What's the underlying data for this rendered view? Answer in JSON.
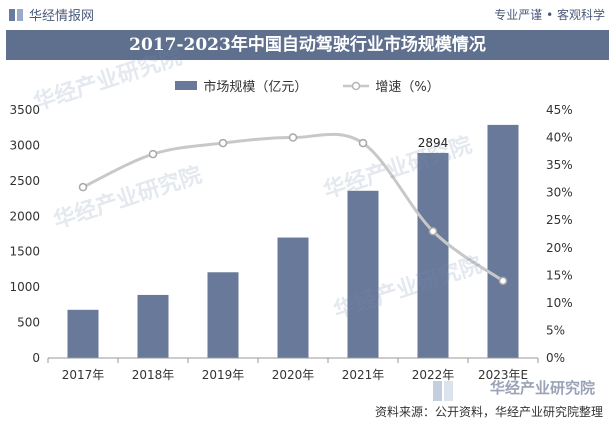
{
  "header": {
    "brand": "华经情报网",
    "tagline": "专业严谨 • 客观科学",
    "title": "2017-2023年中国自动驾驶行业市场规模情况"
  },
  "footer": {
    "source": "资料来源：公开资料，华经产业研究院整理",
    "watermark": "华经产业研究院"
  },
  "colors": {
    "bar": "#69799a",
    "line": "#c8c8c8",
    "title_bg": "#5f6f8e"
  },
  "chart_data": {
    "type": "bar",
    "categories": [
      "2017年",
      "2018年",
      "2019年",
      "2020年",
      "2021年",
      "2022年",
      "2023年E"
    ],
    "series": [
      {
        "name": "市场规模（亿元）",
        "type": "bar",
        "axis": "left",
        "values": [
          680,
          890,
          1210,
          1700,
          2360,
          2894,
          3290
        ]
      },
      {
        "name": "增速（%）",
        "type": "line",
        "axis": "right",
        "values": [
          31,
          37,
          39,
          40,
          39,
          23,
          14
        ]
      }
    ],
    "data_labels": [
      {
        "index": 5,
        "text": "2894"
      }
    ],
    "y_left": {
      "min": 0,
      "max": 3500,
      "ticks": [
        "0",
        "500",
        "1000",
        "1500",
        "2000",
        "2500",
        "3000",
        "3500"
      ]
    },
    "y_right": {
      "min": 0,
      "max": 45,
      "ticks": [
        "0%",
        "5%",
        "10%",
        "15%",
        "20%",
        "25%",
        "30%",
        "35%",
        "40%",
        "45%"
      ]
    },
    "legend": "top-center",
    "grid": false
  }
}
